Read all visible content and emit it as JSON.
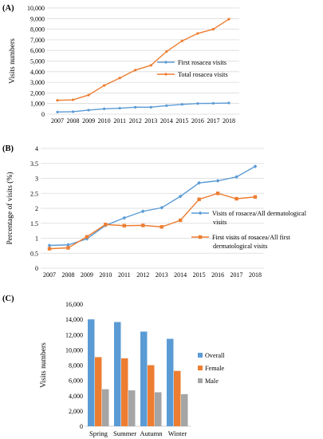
{
  "panels": [
    {
      "label": "(A)"
    },
    {
      "label": "(B)"
    },
    {
      "label": "(C)"
    }
  ],
  "chart_data": [
    {
      "type": "line",
      "title": "",
      "xlabel": "",
      "ylabel": "Visits numbers",
      "ylim": [
        0,
        10000
      ],
      "yticks": [
        "0",
        "1,000",
        "2,000",
        "3,000",
        "4,000",
        "5,000",
        "6,000",
        "7,000",
        "8,000",
        "9,000",
        "10,000"
      ],
      "x": [
        "2007",
        "2008",
        "2009",
        "2010",
        "2011",
        "2012",
        "2013",
        "2014",
        "2015",
        "2016",
        "2017",
        "2018"
      ],
      "grid": "horizontal",
      "legend_position": "right",
      "series": [
        {
          "name": "First rosacea visits",
          "color": "#5b9bd5",
          "marker": "dot",
          "values": [
            200,
            230,
            380,
            500,
            560,
            650,
            650,
            800,
            920,
            1000,
            1020,
            1050
          ]
        },
        {
          "name": "Total rosacea visits",
          "color": "#ed7d31",
          "marker": "dot",
          "values": [
            1300,
            1350,
            1800,
            2700,
            3400,
            4150,
            4600,
            5900,
            6900,
            7600,
            8000,
            8950
          ]
        }
      ]
    },
    {
      "type": "line",
      "title": "",
      "xlabel": "",
      "ylabel": "Percentage of visits (%)",
      "ylim": [
        0,
        4
      ],
      "yticks": [
        "0",
        "0.5",
        "1",
        "1.5",
        "2",
        "2.5",
        "3",
        "3.5",
        "4"
      ],
      "x": [
        "2007",
        "2008",
        "2009",
        "2010",
        "2011",
        "2012",
        "2013",
        "2014",
        "2015",
        "2016",
        "2017",
        "2018"
      ],
      "grid": "horizontal",
      "legend_position": "right",
      "series": [
        {
          "name": "Visits of rosacea/All dermatological visits",
          "legend_lines": [
            "Visits of rosacea/All dermatological",
            "visits"
          ],
          "color": "#5b9bd5",
          "marker": "diamond",
          "values": [
            0.76,
            0.78,
            0.98,
            1.43,
            1.68,
            1.9,
            2.02,
            2.4,
            2.85,
            2.92,
            3.05,
            3.4
          ]
        },
        {
          "name": "First visits of rosacea/All first dermatological visits",
          "legend_lines": [
            "First visits of rosacea/All first",
            "dermatological visits"
          ],
          "color": "#ed7d31",
          "marker": "square",
          "values": [
            0.65,
            0.68,
            1.05,
            1.46,
            1.42,
            1.43,
            1.38,
            1.6,
            2.3,
            2.5,
            2.32,
            2.38
          ]
        }
      ]
    },
    {
      "type": "bar",
      "title": "",
      "xlabel": "",
      "ylabel": "Visits numbers",
      "ylim": [
        0,
        16000
      ],
      "yticks": [
        "0",
        "2,000",
        "4,000",
        "6,000",
        "8,000",
        "10,000",
        "12,000",
        "14,000",
        "16,000"
      ],
      "categories": [
        "Spring",
        "Summer",
        "Autumn",
        "Winter"
      ],
      "grid": "none",
      "legend_position": "right",
      "series": [
        {
          "name": "Overall",
          "color": "#5b9bd5",
          "values": [
            14000,
            13650,
            12400,
            11450
          ]
        },
        {
          "name": "Female",
          "color": "#ed7d31",
          "values": [
            9050,
            8900,
            8000,
            7250
          ]
        },
        {
          "name": "Male",
          "color": "#a5a5a5",
          "values": [
            4850,
            4700,
            4450,
            4200
          ]
        }
      ]
    }
  ]
}
